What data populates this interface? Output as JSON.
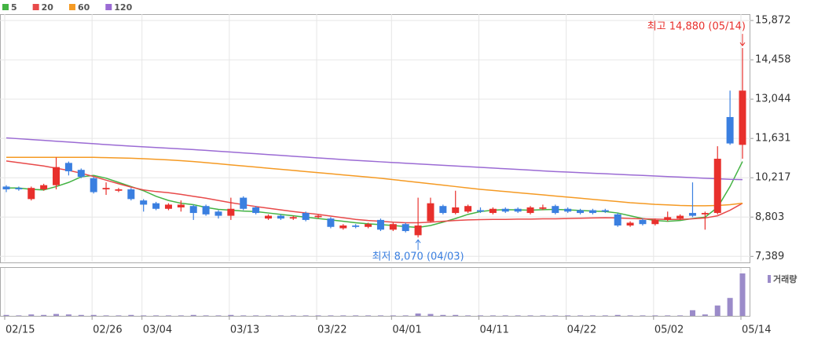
{
  "chart_data": {
    "type": "candlestick",
    "categories": [
      "02/15",
      null,
      null,
      null,
      null,
      null,
      null,
      "02/26",
      null,
      null,
      null,
      "03/04",
      null,
      null,
      null,
      null,
      null,
      null,
      "03/13",
      null,
      null,
      null,
      null,
      null,
      null,
      "03/22",
      null,
      null,
      null,
      null,
      null,
      "04/01",
      null,
      null,
      null,
      null,
      null,
      null,
      "04/11",
      null,
      null,
      null,
      null,
      null,
      null,
      "04/22",
      null,
      null,
      null,
      null,
      null,
      null,
      "05/02",
      null,
      null,
      null,
      null,
      null,
      null,
      "05/14"
    ],
    "open": [
      9900,
      9850,
      9450,
      9800,
      9950,
      10750,
      10500,
      10200,
      9800,
      9750,
      9800,
      9400,
      9300,
      9100,
      9150,
      9200,
      9200,
      9000,
      8850,
      9500,
      9150,
      8750,
      8850,
      8750,
      8950,
      8800,
      8750,
      8400,
      8500,
      8450,
      8700,
      8350,
      8550,
      8150,
      8650,
      9200,
      8950,
      9000,
      9050,
      8950,
      9100,
      9100,
      8950,
      9100,
      9200,
      9100,
      9050,
      9050,
      9050,
      8900,
      8500,
      8700,
      8550,
      8700,
      8750,
      8950,
      8900,
      8950,
      12400,
      11400
    ],
    "high": [
      9950,
      9900,
      9900,
      10000,
      10950,
      10800,
      10550,
      10250,
      10050,
      9850,
      9850,
      9450,
      9350,
      9300,
      9400,
      9250,
      9250,
      9050,
      9500,
      9550,
      9200,
      8900,
      8900,
      8850,
      9000,
      8900,
      8800,
      8550,
      8550,
      8600,
      8750,
      8600,
      8600,
      9500,
      9500,
      9250,
      9750,
      9250,
      9150,
      9150,
      9150,
      9150,
      9200,
      9250,
      9250,
      9150,
      9100,
      9100,
      9100,
      8950,
      8650,
      8750,
      8750,
      9000,
      8900,
      10050,
      9000,
      11350,
      13350,
      14880
    ],
    "low": [
      9700,
      9750,
      9400,
      9750,
      9800,
      10300,
      10200,
      9650,
      9600,
      9700,
      9400,
      9000,
      9050,
      9050,
      9000,
      8700,
      8850,
      8750,
      8700,
      9050,
      8900,
      8700,
      8700,
      8700,
      8650,
      8750,
      8400,
      8350,
      8400,
      8400,
      8300,
      8300,
      8250,
      8070,
      8600,
      8900,
      8900,
      8950,
      8950,
      8900,
      8950,
      8950,
      8900,
      9050,
      8900,
      8950,
      8900,
      8900,
      8950,
      8450,
      8450,
      8500,
      8500,
      8650,
      8700,
      8800,
      8350,
      8900,
      11400,
      10900
    ],
    "close": [
      9800,
      9800,
      9850,
      9950,
      10600,
      10450,
      10250,
      9700,
      9850,
      9800,
      9450,
      9250,
      9100,
      9250,
      9250,
      8950,
      8900,
      8850,
      9100,
      9100,
      8950,
      8850,
      8750,
      8800,
      8700,
      8850,
      8450,
      8500,
      8450,
      8550,
      8350,
      8550,
      8300,
      8500,
      9300,
      8950,
      9150,
      9200,
      9000,
      9100,
      9000,
      9000,
      9150,
      9150,
      8950,
      9000,
      8950,
      8950,
      9000,
      8500,
      8600,
      8550,
      8700,
      8800,
      8850,
      8850,
      8950,
      10900,
      11450,
      13350
    ],
    "up_color": "#e8302c",
    "down_color": "#3a7fe0",
    "ylim": [
      7200,
      16100
    ],
    "yticks": [
      {
        "value": 7389,
        "label": "7,389"
      },
      {
        "value": 8803,
        "label": "8,803"
      },
      {
        "value": 10217,
        "label": "10,217"
      },
      {
        "value": 11631,
        "label": "11,631"
      },
      {
        "value": 13044,
        "label": "13,044"
      },
      {
        "value": 14458,
        "label": "14,458"
      },
      {
        "value": 15872,
        "label": "15,872"
      }
    ],
    "grid": true,
    "moving_averages": [
      {
        "name": "5",
        "color": "#43b343",
        "values": [
          9850,
          9850,
          9800,
          9780,
          9900,
          10050,
          10250,
          10300,
          10200,
          10050,
          9900,
          9750,
          9550,
          9400,
          9300,
          9250,
          9150,
          9080,
          9050,
          9020,
          9000,
          8950,
          8900,
          8850,
          8800,
          8750,
          8700,
          8650,
          8600,
          8560,
          8530,
          8500,
          8460,
          8430,
          8500,
          8620,
          8750,
          8900,
          9000,
          9050,
          9070,
          9060,
          9050,
          9070,
          9080,
          9060,
          9040,
          9020,
          9000,
          8950,
          8850,
          8750,
          8680,
          8650,
          8680,
          8750,
          8800,
          9150,
          9900,
          10800
        ]
      },
      {
        "name": "20",
        "color": "#e84a4a",
        "values": [
          10820,
          10760,
          10700,
          10640,
          10560,
          10480,
          10380,
          10260,
          10130,
          10000,
          9880,
          9780,
          9720,
          9680,
          9620,
          9550,
          9480,
          9400,
          9320,
          9250,
          9180,
          9120,
          9060,
          9000,
          8950,
          8900,
          8840,
          8780,
          8720,
          8680,
          8650,
          8620,
          8600,
          8600,
          8620,
          8650,
          8680,
          8700,
          8710,
          8720,
          8720,
          8730,
          8730,
          8740,
          8740,
          8750,
          8760,
          8770,
          8780,
          8770,
          8750,
          8740,
          8730,
          8720,
          8720,
          8740,
          8770,
          8850,
          9050,
          9300
        ]
      },
      {
        "name": "60",
        "color": "#f59a23",
        "values": [
          10950,
          10950,
          10950,
          10950,
          10950,
          10950,
          10950,
          10950,
          10940,
          10930,
          10920,
          10900,
          10880,
          10860,
          10830,
          10800,
          10760,
          10720,
          10680,
          10640,
          10600,
          10560,
          10520,
          10480,
          10440,
          10400,
          10360,
          10320,
          10280,
          10240,
          10200,
          10150,
          10100,
          10050,
          10000,
          9950,
          9900,
          9850,
          9800,
          9760,
          9720,
          9680,
          9640,
          9600,
          9560,
          9520,
          9480,
          9440,
          9400,
          9360,
          9320,
          9290,
          9260,
          9240,
          9220,
          9210,
          9210,
          9220,
          9250,
          9300
        ]
      },
      {
        "name": "120",
        "color": "#9b6bd4",
        "values": [
          11650,
          11620,
          11590,
          11560,
          11530,
          11500,
          11470,
          11440,
          11410,
          11380,
          11355,
          11330,
          11305,
          11280,
          11255,
          11230,
          11200,
          11170,
          11140,
          11110,
          11080,
          11050,
          11020,
          10990,
          10960,
          10930,
          10900,
          10870,
          10840,
          10815,
          10790,
          10765,
          10740,
          10715,
          10690,
          10665,
          10640,
          10615,
          10590,
          10565,
          10540,
          10515,
          10490,
          10465,
          10440,
          10420,
          10400,
          10380,
          10360,
          10340,
          10320,
          10300,
          10280,
          10260,
          10240,
          10220,
          10200,
          10180,
          10160,
          10150
        ]
      }
    ],
    "volume": {
      "name": "거래량",
      "color": "#9b8bc9",
      "ylim": [
        0,
        100
      ],
      "values": [
        2,
        1,
        3,
        2,
        4,
        3,
        2,
        2,
        1,
        1,
        2,
        1,
        1,
        1,
        1,
        2,
        1,
        1,
        2,
        1,
        1,
        1,
        1,
        1,
        1,
        1,
        1,
        1,
        1,
        1,
        1,
        1,
        1,
        5,
        4,
        2,
        2,
        1,
        1,
        1,
        1,
        1,
        1,
        1,
        1,
        1,
        1,
        1,
        1,
        2,
        1,
        1,
        1,
        1,
        1,
        12,
        3,
        22,
        38,
        90
      ]
    },
    "annotations": [
      {
        "text": "최고 14,880 (05/14)",
        "color": "#e8302c",
        "target": "high"
      },
      {
        "text": "최저 8,070 (04/03)",
        "color": "#3a7fe0",
        "target": "low"
      }
    ]
  }
}
